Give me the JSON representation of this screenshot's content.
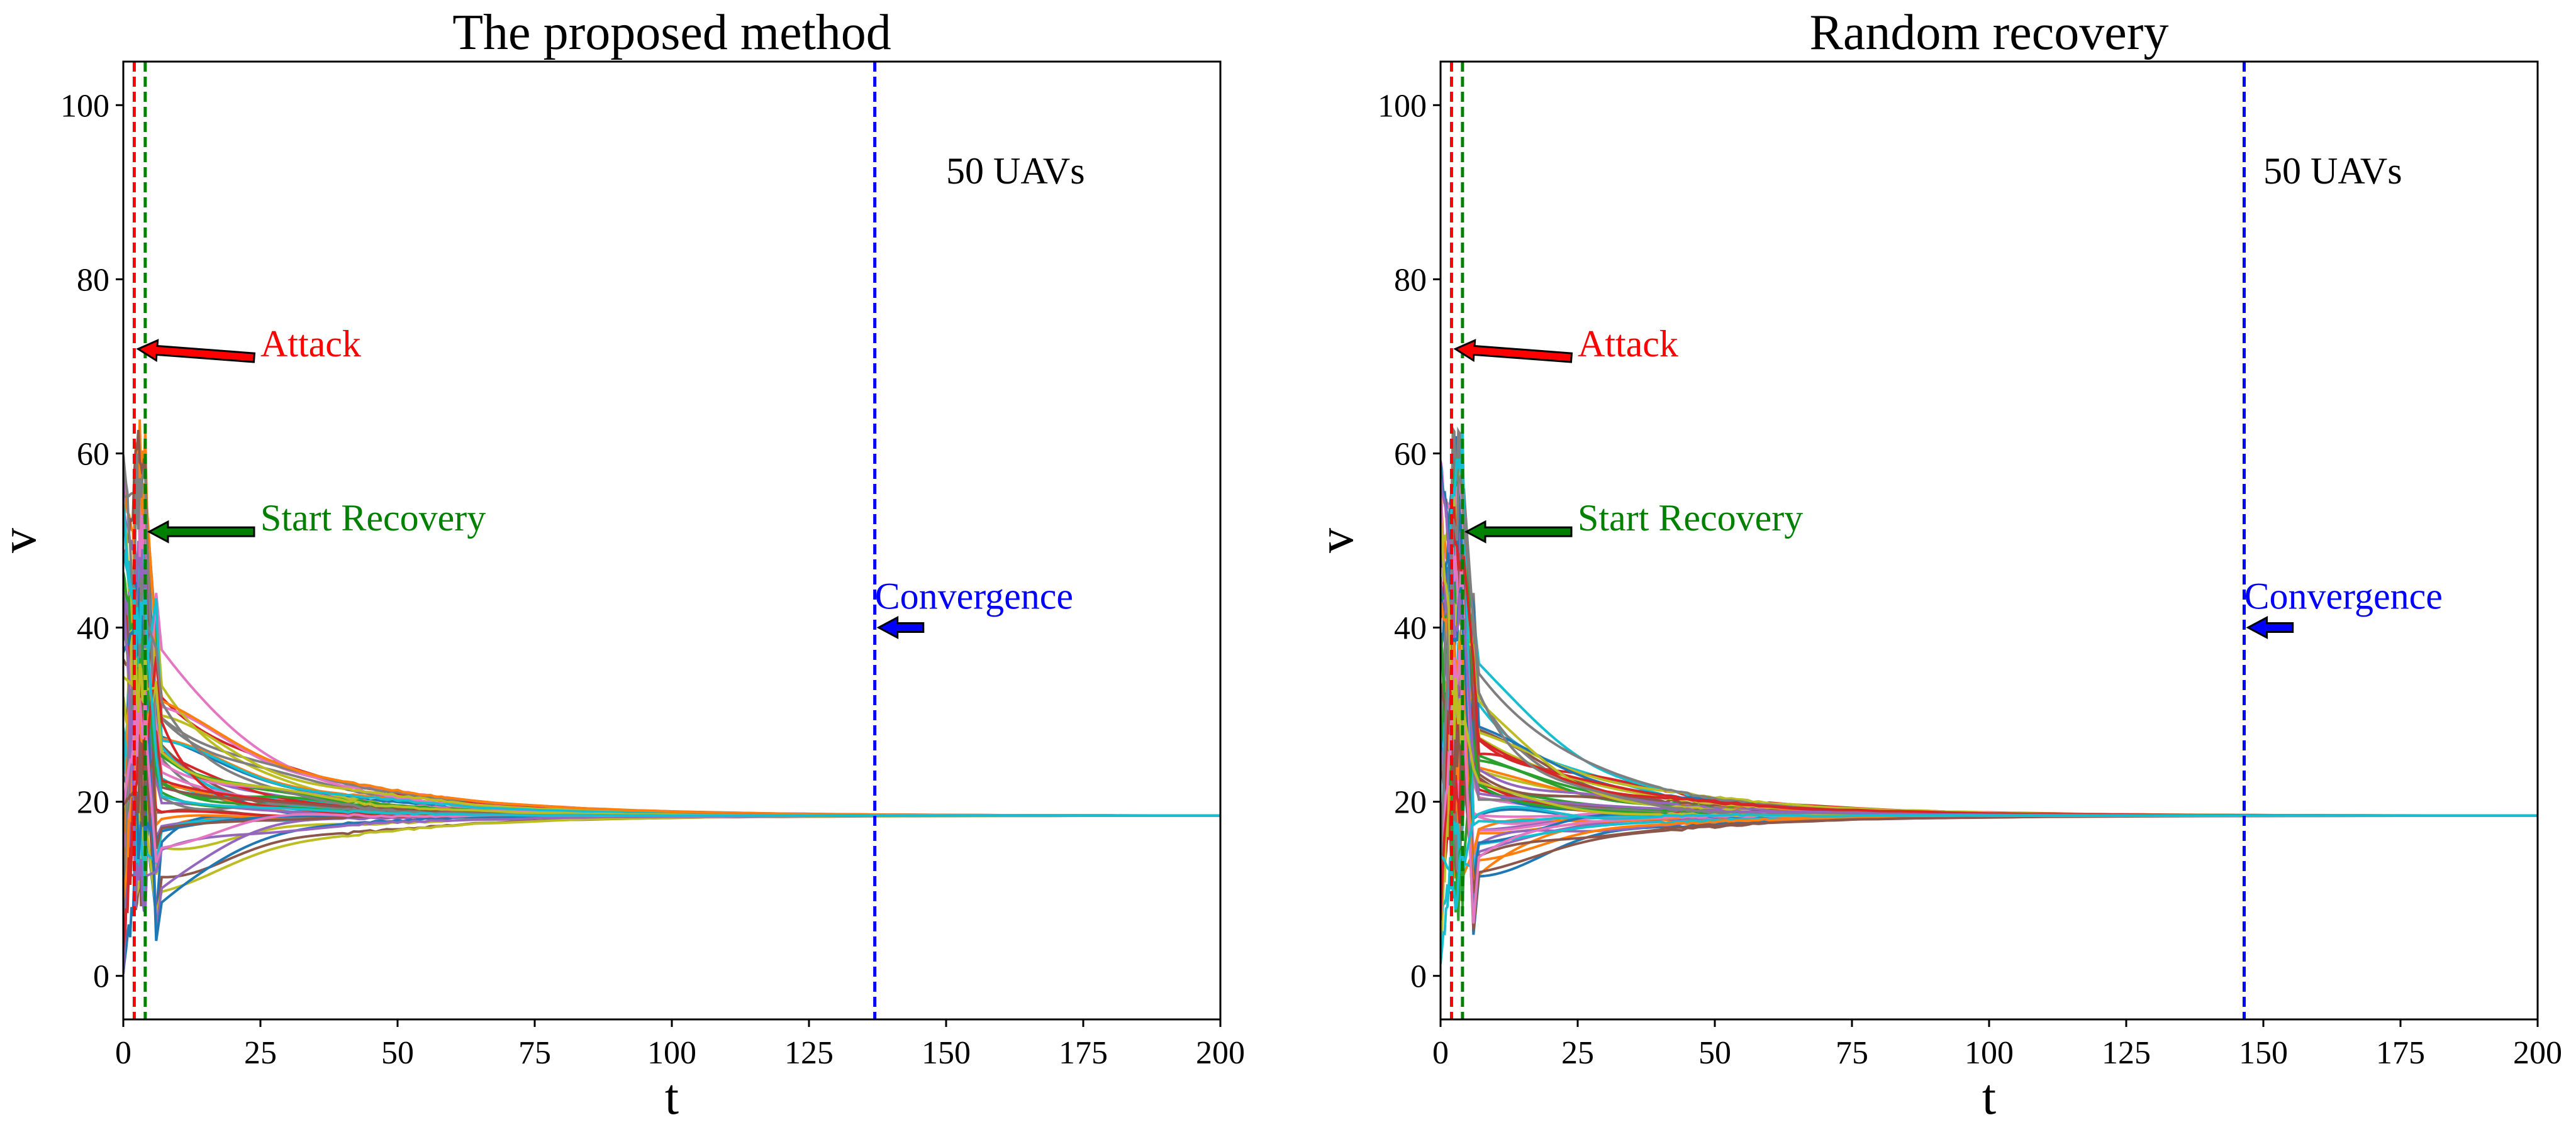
{
  "chart_data": [
    {
      "type": "line",
      "title": "The proposed method",
      "xlabel": "t",
      "ylabel": "v",
      "xlim": [
        0,
        200
      ],
      "ylim": [
        -5,
        105
      ],
      "xticks": [
        0,
        25,
        50,
        75,
        100,
        125,
        150,
        175,
        200
      ],
      "yticks": [
        0,
        20,
        40,
        60,
        80,
        100
      ],
      "grid": false,
      "legend": "none",
      "consensus_value": 18.4,
      "series_count_label": "50 UAVs",
      "vlines": [
        {
          "name": "attack",
          "x": 2,
          "color": "#ff0000"
        },
        {
          "name": "recovery",
          "x": 4,
          "color": "#008000"
        },
        {
          "name": "convergence",
          "x": 137,
          "color": "#0000ff"
        }
      ],
      "annotations": [
        {
          "name": "attack",
          "text": "Attack",
          "color": "#ff0000",
          "x": 2.7,
          "y": 72,
          "xtext": 25,
          "ytext": 71
        },
        {
          "name": "recovery",
          "text": "Start Recovery",
          "color": "#008000",
          "x": 4.7,
          "y": 51,
          "xtext": 25,
          "ytext": 51
        },
        {
          "name": "convergence",
          "text": "Convergence",
          "color": "#0000ff",
          "x": 137.7,
          "y": 40,
          "xtext": 147,
          "ytext": 40
        },
        {
          "name": "count",
          "text": "50 UAVs",
          "color": "#000000",
          "x": 150,
          "y": 91
        }
      ],
      "series_desc": "50 UAV velocity trajectories: initial values spread 0-60, chaotic transient until t=5, then converge to about 18.4 by t≈90",
      "seed": 7,
      "perturb": 1.0
    },
    {
      "type": "line",
      "title": "Random recovery",
      "xlabel": "t",
      "ylabel": "v",
      "xlim": [
        0,
        200
      ],
      "ylim": [
        -5,
        105
      ],
      "xticks": [
        0,
        25,
        50,
        75,
        100,
        125,
        150,
        175,
        200
      ],
      "yticks": [
        0,
        20,
        40,
        60,
        80,
        100
      ],
      "grid": false,
      "legend": "none",
      "consensus_value": 18.4,
      "series_count_label": "50 UAVs",
      "vlines": [
        {
          "name": "attack",
          "x": 2,
          "color": "#ff0000"
        },
        {
          "name": "recovery",
          "x": 4,
          "color": "#008000"
        },
        {
          "name": "convergence",
          "x": 146.5,
          "color": "#0000ff"
        }
      ],
      "annotations": [
        {
          "name": "attack",
          "text": "Attack",
          "color": "#ff0000",
          "x": 2.7,
          "y": 72,
          "xtext": 25,
          "ytext": 71
        },
        {
          "name": "recovery",
          "text": "Start Recovery",
          "color": "#008000",
          "x": 4.7,
          "y": 51,
          "xtext": 25,
          "ytext": 51
        },
        {
          "name": "convergence",
          "text": "Convergence",
          "color": "#0000ff",
          "x": 147.2,
          "y": 40,
          "xtext": 156.5,
          "ytext": 40
        },
        {
          "name": "count",
          "text": "50 UAVs",
          "color": "#000000",
          "x": 150,
          "y": 91
        }
      ],
      "series_desc": "50 UAV velocity trajectories: initial values spread 0-60, chaotic transient until t=5, then converge to about 18.4 by t≈90",
      "seed": 11,
      "perturb": 1.0
    }
  ],
  "palette": [
    "#1f77b4",
    "#ff7f0e",
    "#2ca02c",
    "#d62728",
    "#9467bd",
    "#8c564b",
    "#e377c2",
    "#7f7f7f",
    "#bcbd22",
    "#17becf"
  ]
}
